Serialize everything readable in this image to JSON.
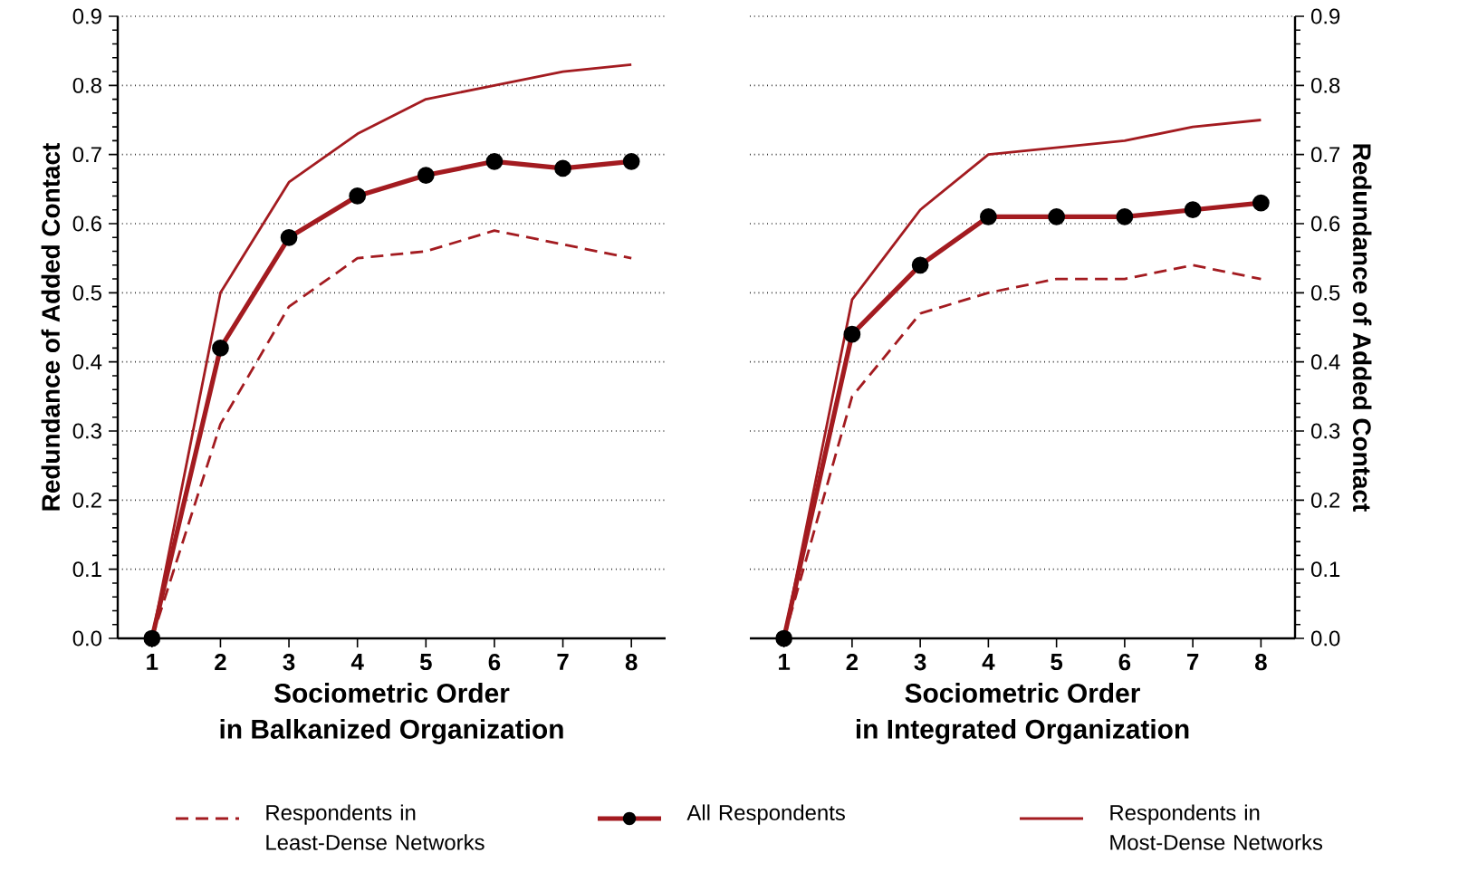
{
  "chart_data": [
    {
      "type": "line",
      "xlabel": "Sociometric Order\nin Balkanized Organization",
      "ylabel": "Redundance of Added Contact",
      "x": [
        1,
        2,
        3,
        4,
        5,
        6,
        7,
        8
      ],
      "xlim": [
        0.5,
        8.5
      ],
      "xticks": [
        1,
        2,
        3,
        4,
        5,
        6,
        7,
        8
      ],
      "ylim": [
        0,
        0.9
      ],
      "yticks": [
        {
          "value": 0,
          "label": "0.0"
        },
        0.1,
        0.2,
        0.3,
        0.4,
        0.5,
        0.6,
        0.7,
        0.8,
        0.9
      ],
      "grid": "y",
      "legend": "bottom",
      "series": [
        {
          "name": "Respondents in Least-Dense Networks",
          "color": "#a31b20",
          "line_style": "dashed",
          "marker": "none",
          "values": [
            0,
            0.31,
            0.48,
            0.55,
            0.56,
            0.59,
            0.57,
            0.55
          ]
        },
        {
          "name": "All Respondents",
          "color": "#a31b20",
          "line_style": "solid",
          "marker": "circle",
          "values": [
            0,
            0.42,
            0.58,
            0.64,
            0.67,
            0.69,
            0.68,
            0.69
          ]
        },
        {
          "name": "Respondents in Most-Dense Networks",
          "color": "#a31b20",
          "line_style": "solid",
          "marker": "none",
          "values": [
            0,
            0.5,
            0.66,
            0.73,
            0.78,
            0.8,
            0.82,
            0.83
          ]
        }
      ]
    },
    {
      "type": "line",
      "xlabel": "Sociometric Order\nin Integrated Organization",
      "y2label": "Redundance of Added Contact",
      "x": [
        1,
        2,
        3,
        4,
        5,
        6,
        7,
        8
      ],
      "xlim": [
        0.5,
        8.5
      ],
      "xticks": [
        1,
        2,
        3,
        4,
        5,
        6,
        7,
        8
      ],
      "y2lim": [
        0,
        0.9
      ],
      "y2ticks": [
        {
          "value": 0,
          "label": "0.0"
        },
        0.1,
        0.2,
        0.3,
        0.4,
        0.5,
        0.6,
        0.7,
        0.8,
        0.9
      ],
      "grid": "y",
      "series": [
        {
          "color": "#a31b20",
          "line_style": "dashed",
          "marker": "none",
          "axis": "y2",
          "values": [
            0,
            0.35,
            0.47,
            0.5,
            0.52,
            0.52,
            0.54,
            0.52
          ]
        },
        {
          "color": "#a31b20",
          "line_style": "solid",
          "marker": "circle",
          "axis": "y2",
          "values": [
            0,
            0.44,
            0.54,
            0.61,
            0.61,
            0.61,
            0.62,
            0.63
          ]
        },
        {
          "color": "#a31b20",
          "line_style": "solid",
          "marker": "none",
          "axis": "y2",
          "values": [
            0,
            0.49,
            0.62,
            0.7,
            0.71,
            0.72,
            0.74,
            0.75
          ]
        }
      ]
    }
  ]
}
